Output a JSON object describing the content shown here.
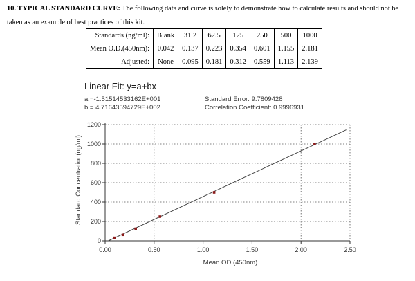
{
  "heading": {
    "number_title": "10. TYPICAL STANDARD CURVE:",
    "text": "The following data and curve is solely to demonstrate how to calculate results and should not be taken as an example of best practices of this kit."
  },
  "table": {
    "rows": [
      {
        "label": "Standards (ng/ml):",
        "cells": [
          "Blank",
          "31.2",
          "62.5",
          "125",
          "250",
          "500",
          "1000"
        ]
      },
      {
        "label": "Mean O.D.(450nm):",
        "cells": [
          "0.042",
          "0.137",
          "0.223",
          "0.354",
          "0.601",
          "1.155",
          "2.181"
        ]
      },
      {
        "label": "Adjusted:",
        "cells": [
          "None",
          "0.095",
          "0.181",
          "0.312",
          "0.559",
          "1.113",
          "2.139"
        ]
      }
    ]
  },
  "fit": {
    "title": "Linear Fit: y=a+bx",
    "a": "a =-1.51514533162E+001",
    "b": "b = 4.71643594729E+002",
    "std_error": "Standard Error: 9.7809428",
    "correlation": "Correlation Coefficient: 0.9996931"
  },
  "chart_data": {
    "type": "scatter",
    "xlabel": "Mean OD (450nm)",
    "ylabel": "Standard Concentration(ng/ml)",
    "xlim": [
      0,
      2.5
    ],
    "ylim": [
      0,
      1200
    ],
    "x_ticks": [
      0,
      0.5,
      1.0,
      1.5,
      2.0,
      2.5
    ],
    "x_tick_labels": [
      "0.00",
      "0.50",
      "1.00",
      "1.50",
      "2.00",
      "2.50"
    ],
    "y_ticks": [
      0,
      200,
      400,
      600,
      800,
      1000,
      1200
    ],
    "y_tick_labels": [
      "0",
      "200",
      "400",
      "600",
      "800",
      "1000",
      "1200"
    ],
    "grid": true,
    "fit_line": {
      "a": -15.1514533162,
      "b": 471.643594729
    },
    "series": [
      {
        "x": [
          0.095,
          0.181,
          0.312,
          0.559,
          1.113,
          2.139
        ],
        "y": [
          31.2,
          62.5,
          125,
          250,
          500,
          1000
        ]
      }
    ],
    "colors": {
      "points": "#8b1a1a",
      "line": "#444444",
      "grid": "#555555"
    }
  }
}
